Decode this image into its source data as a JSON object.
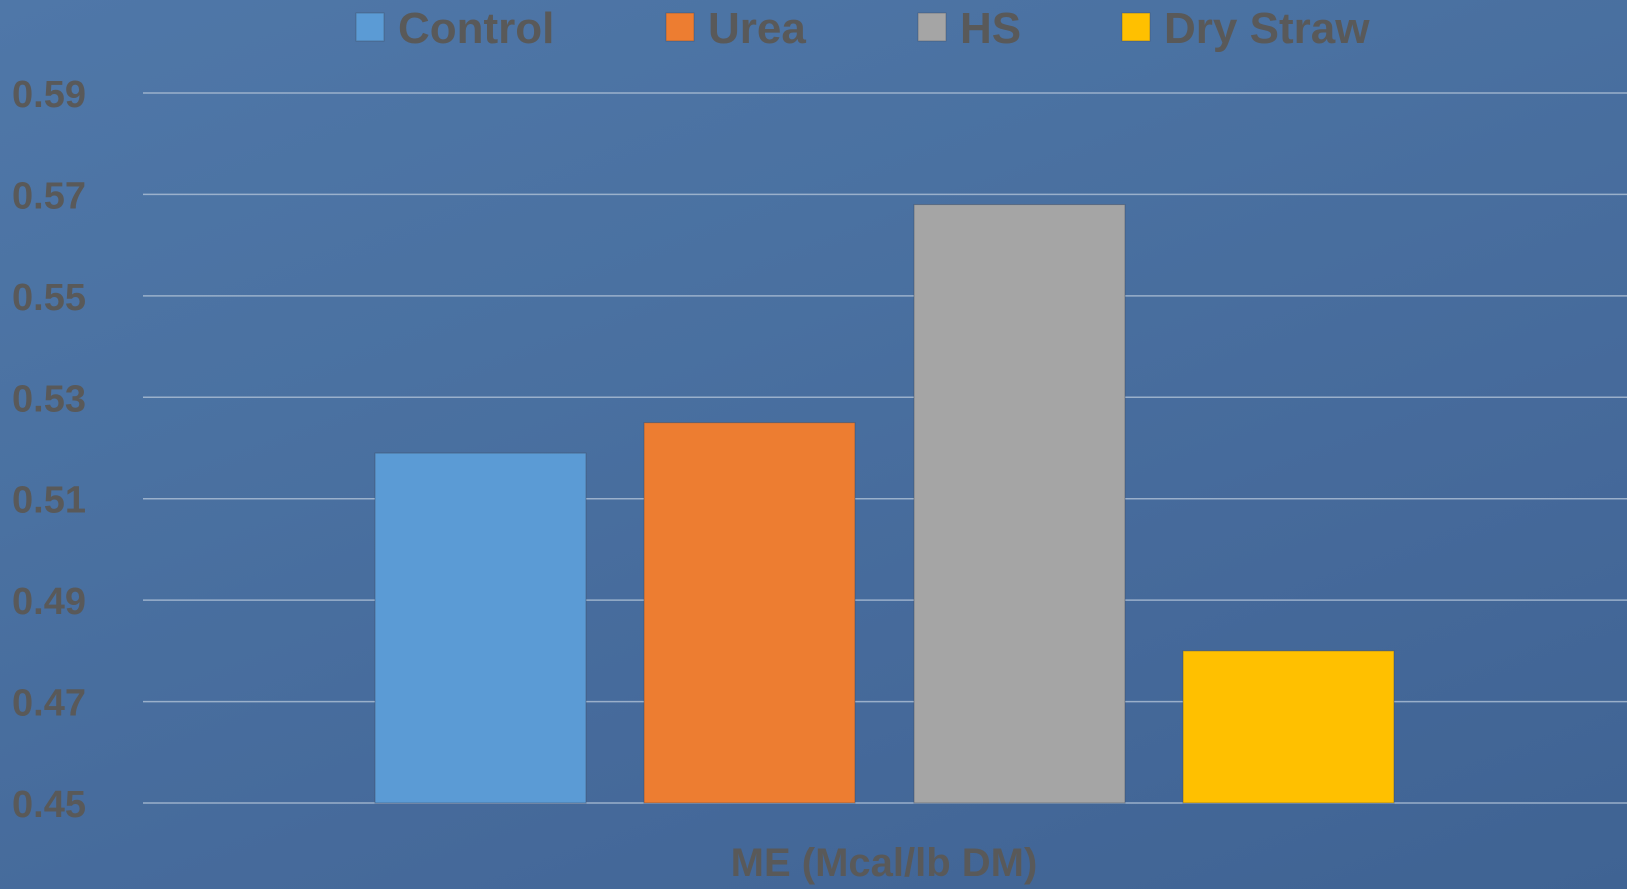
{
  "chart_data": {
    "type": "bar",
    "categories": [
      "ME (Mcal/lb DM)"
    ],
    "series": [
      {
        "name": "Control",
        "color": "#5b9bd5",
        "values": [
          0.519
        ]
      },
      {
        "name": "Urea",
        "color": "#ed7d31",
        "values": [
          0.525
        ]
      },
      {
        "name": "HS",
        "color": "#a5a5a5",
        "values": [
          0.568
        ]
      },
      {
        "name": "Dry Straw",
        "color": "#ffc000",
        "values": [
          0.48
        ]
      }
    ],
    "title": "",
    "xlabel": "ME (Mcal/lb DM)",
    "ylabel": "",
    "ylim": [
      0.45,
      0.59
    ],
    "yticks": [
      "0.45",
      "0.47",
      "0.49",
      "0.51",
      "0.53",
      "0.55",
      "0.57",
      "0.59"
    ],
    "grid": true,
    "legend_position": "top"
  },
  "colors": {
    "background": "#4a71a1",
    "gridline": "#a9bcd3",
    "text": "#595959"
  }
}
